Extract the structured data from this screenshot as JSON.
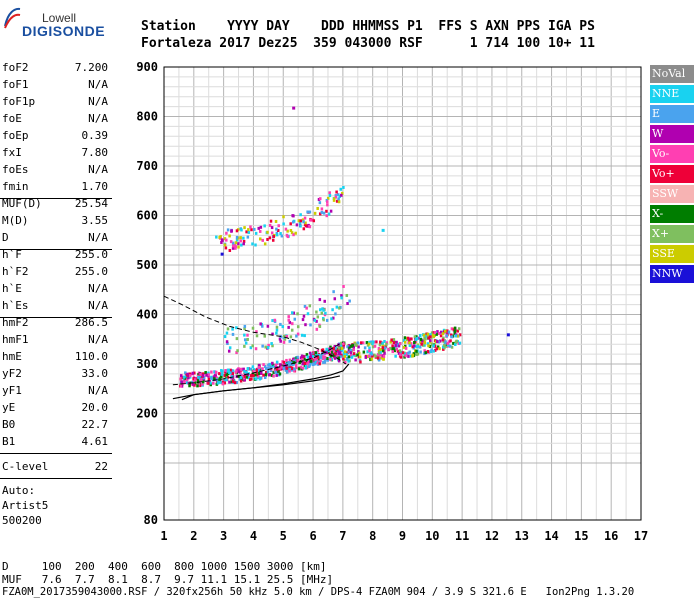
{
  "logo": {
    "top": "Lowell",
    "main": "DIGISONDE"
  },
  "header": {
    "row1": "Station    YYYY DAY    DDD HHMMSS P1  FFS S AXN PPS IGA PS",
    "row2": "Fortaleza 2017 Dez25  359 043000 RSF      1 714 100 10+ 11"
  },
  "params": {
    "g1": [
      {
        "name": "foF2",
        "value": "7.200"
      },
      {
        "name": "foF1",
        "value": "N/A"
      },
      {
        "name": "foF1p",
        "value": "N/A"
      },
      {
        "name": "foE",
        "value": "N/A"
      },
      {
        "name": "foEp",
        "value": "0.39"
      },
      {
        "name": "fxI",
        "value": "7.80"
      },
      {
        "name": "foEs",
        "value": "N/A"
      },
      {
        "name": "fmin",
        "value": "1.70"
      }
    ],
    "g2": [
      {
        "name": "MUF(D)",
        "value": "25.54"
      },
      {
        "name": "M(D)",
        "value": "3.55"
      },
      {
        "name": "D",
        "value": "N/A"
      }
    ],
    "g3": [
      {
        "name": "h`F",
        "value": "255.0"
      },
      {
        "name": "h`F2",
        "value": "255.0"
      },
      {
        "name": "h`E",
        "value": "N/A"
      },
      {
        "name": "h`Es",
        "value": "N/A"
      }
    ],
    "g4": [
      {
        "name": "hmF2",
        "value": "286.5"
      },
      {
        "name": "hmF1",
        "value": "N/A"
      },
      {
        "name": "hmE",
        "value": "110.0"
      },
      {
        "name": "yF2",
        "value": "33.0"
      },
      {
        "name": "yF1",
        "value": "N/A"
      },
      {
        "name": "yE",
        "value": "20.0"
      },
      {
        "name": "B0",
        "value": "22.7"
      },
      {
        "name": "B1",
        "value": "4.61"
      }
    ],
    "g5": [
      {
        "name": "C-level",
        "value": "22"
      }
    ],
    "auto": [
      "Auto:",
      "Artist5",
      "500200"
    ]
  },
  "legend": [
    {
      "label": "NoVal",
      "color": "#8c8c8c"
    },
    {
      "label": "NNE",
      "color": "#19d2f0"
    },
    {
      "label": "E",
      "color": "#4aa3ee"
    },
    {
      "label": "W",
      "color": "#b000b0"
    },
    {
      "label": "Vo-",
      "color": "#ff3fb2"
    },
    {
      "label": "Vo+",
      "color": "#ee0038"
    },
    {
      "label": "SSW",
      "color": "#f7b3b3"
    },
    {
      "label": "X-",
      "color": "#007d00"
    },
    {
      "label": "X+",
      "color": "#7fbf5f"
    },
    {
      "label": "SSE",
      "color": "#cccc00"
    },
    {
      "label": "NNW",
      "color": "#1a10d8"
    }
  ],
  "footer": {
    "row1": "D     100  200  400  600  800 1000 1500 3000 [km]",
    "row2": "MUF   7.6  7.7  8.1  8.7  9.7 11.1 15.1 25.5 [MHz]",
    "row3": "FZA0M_2017359043000.RSF / 320fx256h 50 kHz 5.0 km / DPS-4 FZA0M 904 / 3.9 S 321.6 E   Ion2Png 1.3.20"
  },
  "chart_data": {
    "type": "scatter",
    "xlim": [
      1,
      17
    ],
    "ylim": [
      80,
      900
    ],
    "x_ticks": [
      1,
      2,
      3,
      4,
      5,
      6,
      7,
      8,
      9,
      10,
      11,
      12,
      13,
      14,
      15,
      16,
      17
    ],
    "y_ticks": [
      80,
      200,
      300,
      400,
      500,
      600,
      700,
      800,
      900
    ],
    "xlabel": "",
    "ylabel": "",
    "grid": true,
    "legend_position": "right",
    "profile_solid": [
      [
        1.6,
        228
      ],
      [
        2.0,
        238
      ],
      [
        3.0,
        246
      ],
      [
        4.0,
        252
      ],
      [
        5.0,
        260
      ],
      [
        6.0,
        270
      ],
      [
        6.6,
        278
      ],
      [
        7.0,
        286
      ],
      [
        7.2,
        300
      ]
    ],
    "profile_lower": [
      [
        1.3,
        230
      ],
      [
        2.0,
        238
      ],
      [
        3.0,
        246
      ],
      [
        4.0,
        252
      ],
      [
        5.0,
        258
      ],
      [
        6.0,
        266
      ],
      [
        6.6,
        272
      ],
      [
        6.9,
        276
      ]
    ],
    "profile_dashed_upper": [
      [
        1.0,
        437
      ],
      [
        1.6,
        420
      ],
      [
        2.4,
        395
      ],
      [
        3.2,
        376
      ],
      [
        4.0,
        364
      ],
      [
        5.0,
        355
      ],
      [
        5.6,
        344
      ],
      [
        6.2,
        330
      ],
      [
        6.8,
        312
      ],
      [
        7.1,
        300
      ]
    ],
    "profile_dashed_lower": [
      [
        1.3,
        258
      ],
      [
        2.0,
        262
      ],
      [
        3.0,
        270
      ],
      [
        4.0,
        282
      ],
      [
        5.0,
        296
      ],
      [
        6.0,
        312
      ],
      [
        6.6,
        330
      ],
      [
        7.0,
        345
      ]
    ],
    "clusters": [
      {
        "name": "o-trace",
        "xmin": 1.5,
        "xmax": 7.0,
        "ystart": 268,
        "yend": 330,
        "spread": 28,
        "density": 26,
        "colors": [
          "#ee0038",
          "#ff3fb2",
          "#b000b0",
          "#4aa3ee",
          "#19d2f0",
          "#007d00"
        ]
      },
      {
        "name": "x-trace",
        "xmin": 6.8,
        "xmax": 10.9,
        "ystart": 320,
        "yend": 355,
        "spread": 40,
        "density": 22,
        "colors": [
          "#ee0038",
          "#ff3fb2",
          "#b000b0",
          "#4aa3ee",
          "#19d2f0",
          "#007d00",
          "#7fbf5f",
          "#cccc00"
        ]
      },
      {
        "name": "spread-F",
        "xmin": 3.0,
        "xmax": 7.2,
        "ystart": 340,
        "yend": 440,
        "spread": 60,
        "density": 7,
        "colors": [
          "#19d2f0",
          "#4aa3ee",
          "#b000b0",
          "#ff3fb2",
          "#7fbf5f"
        ]
      },
      {
        "name": "2F-trace",
        "xmin": 2.7,
        "xmax": 7.0,
        "ystart": 545,
        "yend": 640,
        "spread": 45,
        "density": 9,
        "colors": [
          "#ee0038",
          "#ff3fb2",
          "#b000b0",
          "#4aa3ee",
          "#19d2f0",
          "#cccc00"
        ]
      }
    ],
    "isolated_points": [
      {
        "x": 5.3,
        "y": 820,
        "color": "#b000b0"
      },
      {
        "x": 12.5,
        "y": 362,
        "color": "#1a10d8"
      },
      {
        "x": 8.3,
        "y": 573,
        "color": "#19d2f0"
      },
      {
        "x": 2.9,
        "y": 525,
        "color": "#1a10d8"
      },
      {
        "x": 10.6,
        "y": 358,
        "color": "#4aa3ee"
      }
    ]
  }
}
